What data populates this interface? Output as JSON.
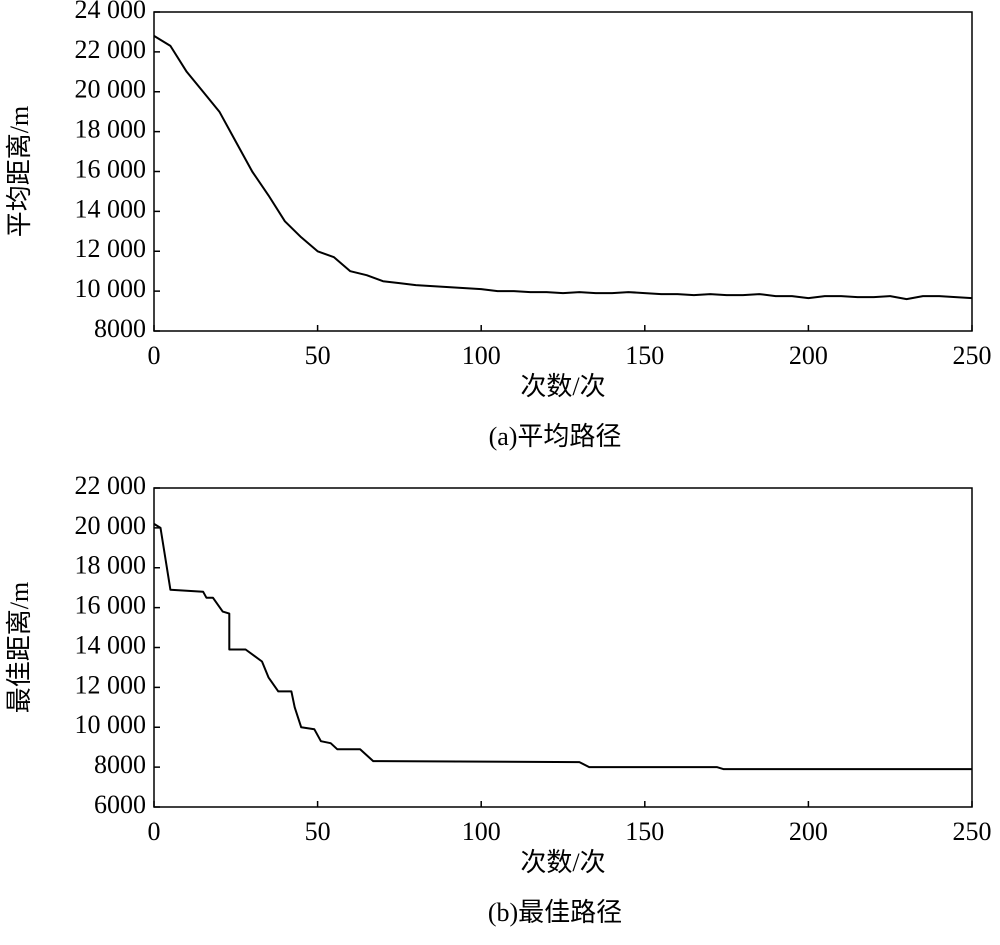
{
  "chart_data": [
    {
      "type": "line",
      "caption": "(a)平均路径",
      "xlabel": "次数/次",
      "ylabel": "平均距离/m",
      "color": "#000000",
      "x": [
        0,
        5,
        10,
        15,
        20,
        25,
        30,
        35,
        40,
        45,
        50,
        55,
        60,
        65,
        70,
        75,
        80,
        85,
        90,
        95,
        100,
        105,
        110,
        115,
        120,
        125,
        130,
        135,
        140,
        145,
        150,
        155,
        160,
        165,
        170,
        175,
        180,
        185,
        190,
        195,
        200,
        205,
        210,
        215,
        220,
        225,
        230,
        235,
        240,
        245,
        250
      ],
      "values": [
        22800,
        22300,
        21000,
        20000,
        19000,
        17500,
        16000,
        14800,
        13500,
        12700,
        12000,
        11700,
        11000,
        10800,
        10500,
        10400,
        10300,
        10250,
        10200,
        10150,
        10100,
        10000,
        10000,
        9950,
        9950,
        9900,
        9950,
        9900,
        9900,
        9950,
        9900,
        9850,
        9850,
        9800,
        9850,
        9800,
        9800,
        9850,
        9750,
        9750,
        9650,
        9750,
        9750,
        9700,
        9700,
        9750,
        9600,
        9750,
        9750,
        9700,
        9650
      ],
      "xlim": [
        0,
        250
      ],
      "xticks": [
        0,
        50,
        100,
        150,
        200,
        250
      ],
      "ylim": [
        8000,
        24000
      ],
      "yticks": [
        8000,
        {
          "value": 10000,
          "label": "10 000"
        },
        {
          "value": 12000,
          "label": "12 000"
        },
        {
          "value": 14000,
          "label": "14 000"
        },
        {
          "value": 16000,
          "label": "16 000"
        },
        {
          "value": 18000,
          "label": "18 000"
        },
        {
          "value": 20000,
          "label": "20 000"
        },
        {
          "value": 22000,
          "label": "22 000"
        },
        {
          "value": 24000,
          "label": "24 000"
        }
      ]
    },
    {
      "type": "line",
      "caption": "(b)最佳路径",
      "xlabel": "次数/次",
      "ylabel": "最佳距离/m",
      "color": "#000000",
      "x": [
        0,
        2,
        5,
        15,
        16,
        18,
        21,
        23,
        23,
        28,
        33,
        35,
        38,
        42,
        43,
        45,
        49,
        51,
        54,
        56,
        63,
        67,
        130,
        133,
        172,
        174,
        250
      ],
      "values": [
        20200,
        20000,
        16900,
        16800,
        16500,
        16500,
        15800,
        15700,
        13900,
        13900,
        13300,
        12500,
        11800,
        11800,
        11000,
        10000,
        9900,
        9300,
        9200,
        8900,
        8900,
        8300,
        8250,
        8000,
        8000,
        7900,
        7900
      ],
      "xlim": [
        0,
        250
      ],
      "xticks": [
        0,
        50,
        100,
        150,
        200,
        250
      ],
      "ylim": [
        6000,
        22000
      ],
      "yticks": [
        6000,
        8000,
        {
          "value": 10000,
          "label": "10 000"
        },
        {
          "value": 12000,
          "label": "12 000"
        },
        {
          "value": 14000,
          "label": "14 000"
        },
        {
          "value": 16000,
          "label": "16 000"
        },
        {
          "value": 18000,
          "label": "18 000"
        },
        {
          "value": 20000,
          "label": "20 000"
        },
        {
          "value": 22000,
          "label": "22 000"
        }
      ]
    }
  ]
}
